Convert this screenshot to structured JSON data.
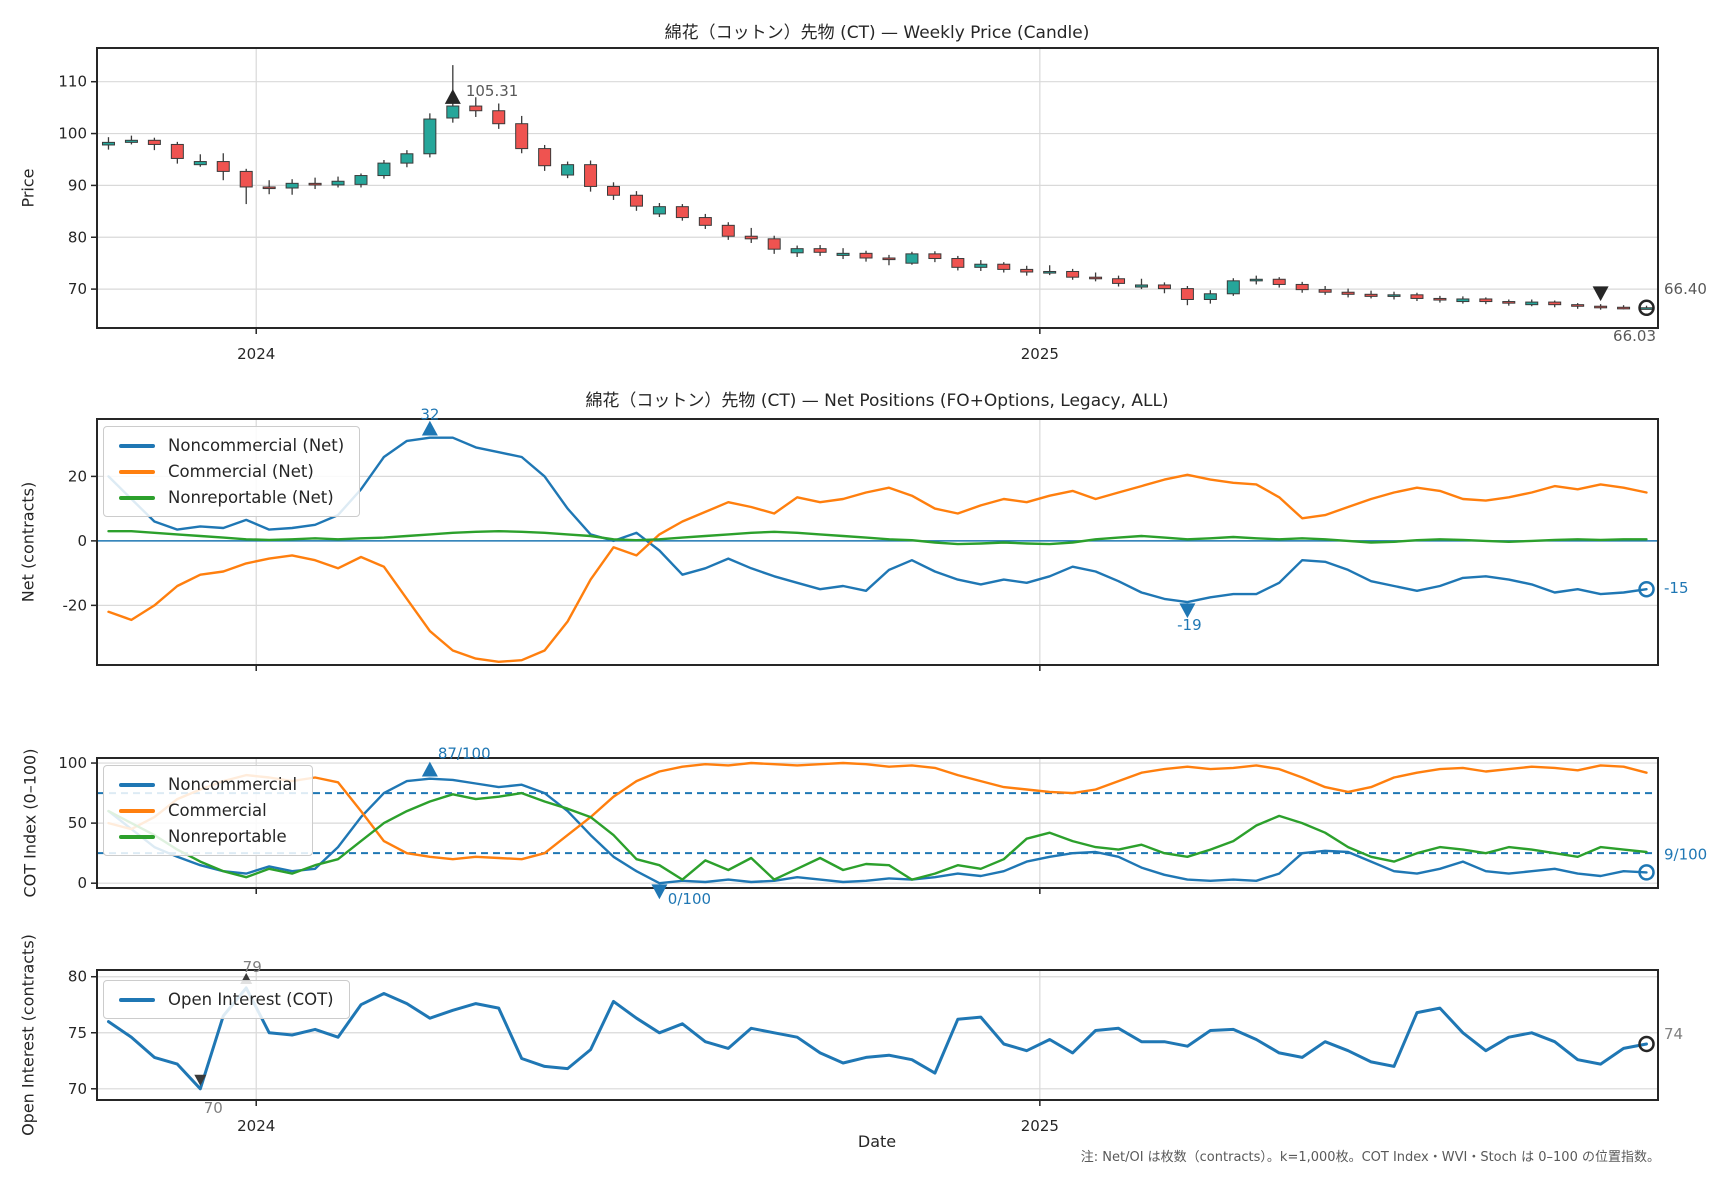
{
  "note": "注: Net/OI は枚数（contracts）。k=1,000枚。COT Index・WVI・Stoch は 0–100 の位置指数。",
  "x_axis": {
    "label": "Date",
    "ticks": [
      {
        "label": "2024",
        "pos": 0.102
      },
      {
        "label": "2025",
        "pos": 0.604
      }
    ]
  },
  "chart_data": [
    {
      "type": "candlestick",
      "title": "綿花（コットン）先物 (CT) — Weekly Price (Candle)",
      "y_axis": {
        "label": "Price",
        "ticks": [
          70,
          80,
          90,
          100,
          110
        ],
        "range": [
          62.5,
          116.5
        ]
      },
      "show_x_tick_labels": true,
      "colors": {
        "up": "#26a69a",
        "down": "#ef5350",
        "wick": "#3a3a3a"
      },
      "callout_colors": {
        "text": "#595959",
        "marker": "#262626",
        "ring": "#262626"
      },
      "callouts": {
        "max": {
          "index": 15,
          "label": "105.31"
        },
        "min": {
          "index": 65,
          "label": "66.03"
        },
        "last": {
          "label": "66.40"
        }
      },
      "candles": [
        [
          97.8,
          99.3,
          96.9,
          98.3
        ],
        [
          98.3,
          99.6,
          97.9,
          98.7
        ],
        [
          98.7,
          99.2,
          96.8,
          97.9
        ],
        [
          97.9,
          98.4,
          94.2,
          95.2
        ],
        [
          94.0,
          96.0,
          93.6,
          94.6
        ],
        [
          94.6,
          96.2,
          91.0,
          92.7
        ],
        [
          92.7,
          93.2,
          86.4,
          89.7
        ],
        [
          89.7,
          91.0,
          88.3,
          89.5
        ],
        [
          89.5,
          91.2,
          88.2,
          90.4
        ],
        [
          90.4,
          91.5,
          89.3,
          90.1
        ],
        [
          90.1,
          91.7,
          89.6,
          90.8
        ],
        [
          90.2,
          92.3,
          89.6,
          91.9
        ],
        [
          91.9,
          94.9,
          91.3,
          94.3
        ],
        [
          94.3,
          96.8,
          93.5,
          96.1
        ],
        [
          96.1,
          103.9,
          95.4,
          102.8
        ],
        [
          103.0,
          113.2,
          102.1,
          105.31
        ],
        [
          105.3,
          107.0,
          103.2,
          104.4
        ],
        [
          104.4,
          105.8,
          100.9,
          101.9
        ],
        [
          101.9,
          103.4,
          96.2,
          97.1
        ],
        [
          97.1,
          97.8,
          92.8,
          93.8
        ],
        [
          92.0,
          94.6,
          91.4,
          94.0
        ],
        [
          94.0,
          94.8,
          88.8,
          89.8
        ],
        [
          89.8,
          90.6,
          87.2,
          88.1
        ],
        [
          88.1,
          88.9,
          85.1,
          86.0
        ],
        [
          84.5,
          86.6,
          83.9,
          85.9
        ],
        [
          85.9,
          86.4,
          83.2,
          83.8
        ],
        [
          83.8,
          84.5,
          81.6,
          82.3
        ],
        [
          82.3,
          82.9,
          79.5,
          80.2
        ],
        [
          80.2,
          81.8,
          78.9,
          79.7
        ],
        [
          79.7,
          80.3,
          76.8,
          77.7
        ],
        [
          77.0,
          78.4,
          76.2,
          77.8
        ],
        [
          77.8,
          78.5,
          76.4,
          77.1
        ],
        [
          76.5,
          77.9,
          75.8,
          76.9
        ],
        [
          76.9,
          77.4,
          75.3,
          76.0
        ],
        [
          76.0,
          76.6,
          74.6,
          75.7
        ],
        [
          75.0,
          77.2,
          74.7,
          76.8
        ],
        [
          76.8,
          77.3,
          75.2,
          75.9
        ],
        [
          75.9,
          76.4,
          73.6,
          74.2
        ],
        [
          74.2,
          75.6,
          73.5,
          74.8
        ],
        [
          74.8,
          75.2,
          73.2,
          73.8
        ],
        [
          73.8,
          74.5,
          72.6,
          73.3
        ],
        [
          73.3,
          74.6,
          72.7,
          73.4
        ],
        [
          73.4,
          73.9,
          71.8,
          72.3
        ],
        [
          72.3,
          73.2,
          71.5,
          72.0
        ],
        [
          72.0,
          72.6,
          70.5,
          71.1
        ],
        [
          70.4,
          72.0,
          70.0,
          70.8
        ],
        [
          70.8,
          71.3,
          69.2,
          70.1
        ],
        [
          70.1,
          70.6,
          66.9,
          68.0
        ],
        [
          68.0,
          69.8,
          67.2,
          69.1
        ],
        [
          69.1,
          72.1,
          68.7,
          71.6
        ],
        [
          71.6,
          72.6,
          70.9,
          71.9
        ],
        [
          71.9,
          72.3,
          70.3,
          70.9
        ],
        [
          70.9,
          71.4,
          69.3,
          69.9
        ],
        [
          69.9,
          70.6,
          68.9,
          69.4
        ],
        [
          69.4,
          70.1,
          68.4,
          69.0
        ],
        [
          69.0,
          69.7,
          68.2,
          68.6
        ],
        [
          68.6,
          69.5,
          68.0,
          68.9
        ],
        [
          68.9,
          69.3,
          67.7,
          68.2
        ],
        [
          68.2,
          68.7,
          67.4,
          67.9
        ],
        [
          67.6,
          68.6,
          67.2,
          68.1
        ],
        [
          68.1,
          68.4,
          67.1,
          67.6
        ],
        [
          67.6,
          68.0,
          66.8,
          67.3
        ],
        [
          67.0,
          68.0,
          66.7,
          67.5
        ],
        [
          67.5,
          67.8,
          66.5,
          67.0
        ],
        [
          67.0,
          67.3,
          66.2,
          66.7
        ],
        [
          66.7,
          67.1,
          66.03,
          66.5
        ],
        [
          66.5,
          66.9,
          66.1,
          66.3
        ],
        [
          66.3,
          66.8,
          66.1,
          66.4
        ]
      ]
    },
    {
      "type": "line",
      "title": "綿花（コットン）先物 (CT) — Net Positions (FO+Options, Legacy, ALL)",
      "y_axis": {
        "label": "Net (contracts)",
        "ticks": [
          -20,
          0,
          20
        ],
        "range": [
          -38.5,
          37.8
        ]
      },
      "zero_line": true,
      "legend_position": "upper-left",
      "callout_colors": {
        "text": "#1f77b4",
        "marker": "#1f77b4",
        "ring": "#1f77b4"
      },
      "callouts": {
        "max": {
          "series": 0,
          "index": 14,
          "label": "32"
        },
        "min": {
          "series": 0,
          "index": 47,
          "label": "-19"
        },
        "last": {
          "series": 0,
          "label": "-15"
        }
      },
      "series": [
        {
          "name": "Noncommercial (Net)",
          "color": "#1f77b4",
          "values": [
            20,
            13,
            6,
            3.5,
            4.5,
            4,
            6.5,
            3.5,
            4,
            5,
            8,
            16,
            26,
            31,
            32,
            32,
            29,
            27.5,
            26,
            20,
            10,
            2,
            0,
            2.5,
            -3,
            -10.5,
            -8.5,
            -5.5,
            -8.5,
            -11,
            -13,
            -15,
            -14,
            -15.5,
            -9,
            -6,
            -9.5,
            -12,
            -13.5,
            -12,
            -13,
            -11,
            -8,
            -9.5,
            -12.5,
            -16,
            -18,
            -19,
            -17.5,
            -16.5,
            -16.5,
            -13,
            -6,
            -6.5,
            -9,
            -12.5,
            -14,
            -15.5,
            -14,
            -11.5,
            -11,
            -12,
            -13.5,
            -16,
            -15,
            -16.5,
            -16,
            -15
          ]
        },
        {
          "name": "Commercial (Net)",
          "color": "#ff7f0e",
          "values": [
            -22,
            -24.5,
            -20,
            -14,
            -10.5,
            -9.5,
            -7,
            -5.5,
            -4.5,
            -6,
            -8.5,
            -5,
            -8,
            -18,
            -28,
            -34,
            -36.5,
            -37.5,
            -37,
            -34,
            -25,
            -12,
            -2,
            -4.5,
            2,
            6,
            9,
            12,
            10.5,
            8.5,
            13.5,
            12,
            13,
            15,
            16.5,
            14,
            10,
            8.5,
            11,
            13,
            12,
            14,
            15.5,
            13,
            15,
            17,
            19,
            20.5,
            19,
            18,
            17.5,
            13.5,
            7,
            8,
            10.5,
            13,
            15,
            16.5,
            15.5,
            13,
            12.5,
            13.5,
            15,
            17,
            16,
            17.5,
            16.5,
            15
          ]
        },
        {
          "name": "Nonreportable (Net)",
          "color": "#2ca02c",
          "values": [
            3,
            3,
            2.5,
            2,
            1.5,
            1,
            0.5,
            0.3,
            0.5,
            0.8,
            0.5,
            0.8,
            1,
            1.5,
            2,
            2.5,
            2.8,
            3,
            2.8,
            2.5,
            2,
            1.5,
            0.5,
            0.2,
            0.5,
            1,
            1.5,
            2,
            2.5,
            2.8,
            2.5,
            2,
            1.5,
            1,
            0.5,
            0.2,
            -0.5,
            -1,
            -0.8,
            -0.5,
            -0.8,
            -1,
            -0.5,
            0.5,
            1,
            1.5,
            1,
            0.5,
            0.8,
            1.2,
            0.8,
            0.5,
            0.8,
            0.5,
            0,
            -0.5,
            -0.3,
            0.2,
            0.5,
            0.3,
            0,
            -0.3,
            0,
            0.3,
            0.5,
            0.3,
            0.5,
            0.5
          ]
        }
      ]
    },
    {
      "type": "line",
      "title": "",
      "y_axis": {
        "label": "COT Index (0–100)",
        "ticks": [
          0,
          50,
          100
        ],
        "range": [
          -4,
          104.2
        ]
      },
      "guides": [
        25,
        75
      ],
      "legend_position": "upper-left",
      "callout_colors": {
        "text": "#1f77b4",
        "marker": "#1f77b4",
        "ring": "#1f77b4"
      },
      "callouts": {
        "max": {
          "series": 0,
          "index": 14,
          "label": "87/100"
        },
        "min": {
          "series": 0,
          "index": 24,
          "label": "0/100"
        },
        "last": {
          "series": 0,
          "label": "9/100"
        }
      },
      "series": [
        {
          "name": "Noncommercial",
          "color": "#1f77b4",
          "values": [
            60,
            45,
            30,
            22,
            15,
            10,
            8,
            14,
            10,
            12,
            30,
            55,
            75,
            85,
            87,
            86,
            83,
            80,
            82,
            75,
            60,
            40,
            22,
            10,
            0,
            2,
            1,
            3,
            1,
            2,
            5,
            3,
            1,
            2,
            4,
            3,
            5,
            8,
            6,
            10,
            18,
            22,
            25,
            26,
            22,
            13,
            7,
            3,
            2,
            3,
            2,
            8,
            25,
            27,
            26,
            18,
            10,
            8,
            12,
            18,
            10,
            8,
            10,
            12,
            8,
            6,
            10,
            9
          ]
        },
        {
          "name": "Commercial",
          "color": "#ff7f0e",
          "values": [
            50,
            45,
            55,
            70,
            78,
            85,
            90,
            88,
            85,
            88,
            84,
            60,
            35,
            25,
            22,
            20,
            22,
            21,
            20,
            25,
            40,
            55,
            72,
            85,
            93,
            97,
            99,
            98,
            100,
            99,
            98,
            99,
            100,
            99,
            97,
            98,
            96,
            90,
            85,
            80,
            78,
            76,
            75,
            78,
            85,
            92,
            95,
            97,
            95,
            96,
            98,
            95,
            88,
            80,
            76,
            80,
            88,
            92,
            95,
            96,
            93,
            95,
            97,
            96,
            94,
            98,
            97,
            92
          ]
        },
        {
          "name": "Nonreportable",
          "color": "#2ca02c",
          "values": [
            60,
            50,
            40,
            28,
            18,
            10,
            5,
            12,
            8,
            15,
            20,
            35,
            50,
            60,
            68,
            74,
            70,
            72,
            75,
            68,
            62,
            55,
            40,
            20,
            15,
            3,
            19,
            11,
            21,
            3,
            12,
            21,
            11,
            16,
            15,
            3,
            8,
            15,
            12,
            20,
            37,
            42,
            35,
            30,
            28,
            32,
            25,
            22,
            28,
            35,
            48,
            56,
            50,
            42,
            30,
            22,
            18,
            25,
            30,
            28,
            25,
            30,
            28,
            25,
            22,
            30,
            28,
            26
          ]
        }
      ]
    },
    {
      "type": "line",
      "title": "",
      "y_axis": {
        "label": "Open Interest (contracts)",
        "ticks": [
          70,
          75,
          80
        ],
        "range": [
          69.0,
          80.6
        ]
      },
      "show_x_tick_labels": true,
      "line_width": 3,
      "legend_position": "upper-left",
      "callout_colors": {
        "text": "#7f7f7f",
        "marker": "#3a3a3a",
        "ring": "#262626"
      },
      "callouts": {
        "max": {
          "series": 0,
          "index": 6,
          "label": "79"
        },
        "min": {
          "series": 0,
          "index": 4,
          "label": "70"
        },
        "last": {
          "label": "74"
        }
      },
      "series": [
        {
          "name": "Open Interest (COT)",
          "color": "#1f77b4",
          "values": [
            76,
            74.6,
            72.8,
            72.2,
            70,
            76.5,
            79,
            75,
            74.8,
            75.3,
            74.6,
            77.5,
            78.5,
            77.6,
            76.3,
            77,
            77.6,
            77.2,
            72.7,
            72,
            71.8,
            73.5,
            77.8,
            76.3,
            75,
            75.8,
            74.2,
            73.6,
            75.4,
            75,
            74.6,
            73.2,
            72.3,
            72.8,
            73,
            72.6,
            71.4,
            76.2,
            76.4,
            74,
            73.4,
            74.4,
            73.2,
            75.2,
            75.4,
            74.2,
            74.2,
            73.8,
            75.2,
            75.3,
            74.4,
            73.2,
            72.8,
            74.2,
            73.4,
            72.4,
            72,
            76.8,
            77.2,
            75,
            73.4,
            74.6,
            75,
            74.2,
            72.6,
            72.2,
            73.6,
            74
          ]
        }
      ]
    }
  ],
  "style_colors": {
    "frame": "#262626",
    "grid": "#d9d9d9",
    "guide_dashed": "#1f77b4",
    "tick_text": "#262626"
  }
}
